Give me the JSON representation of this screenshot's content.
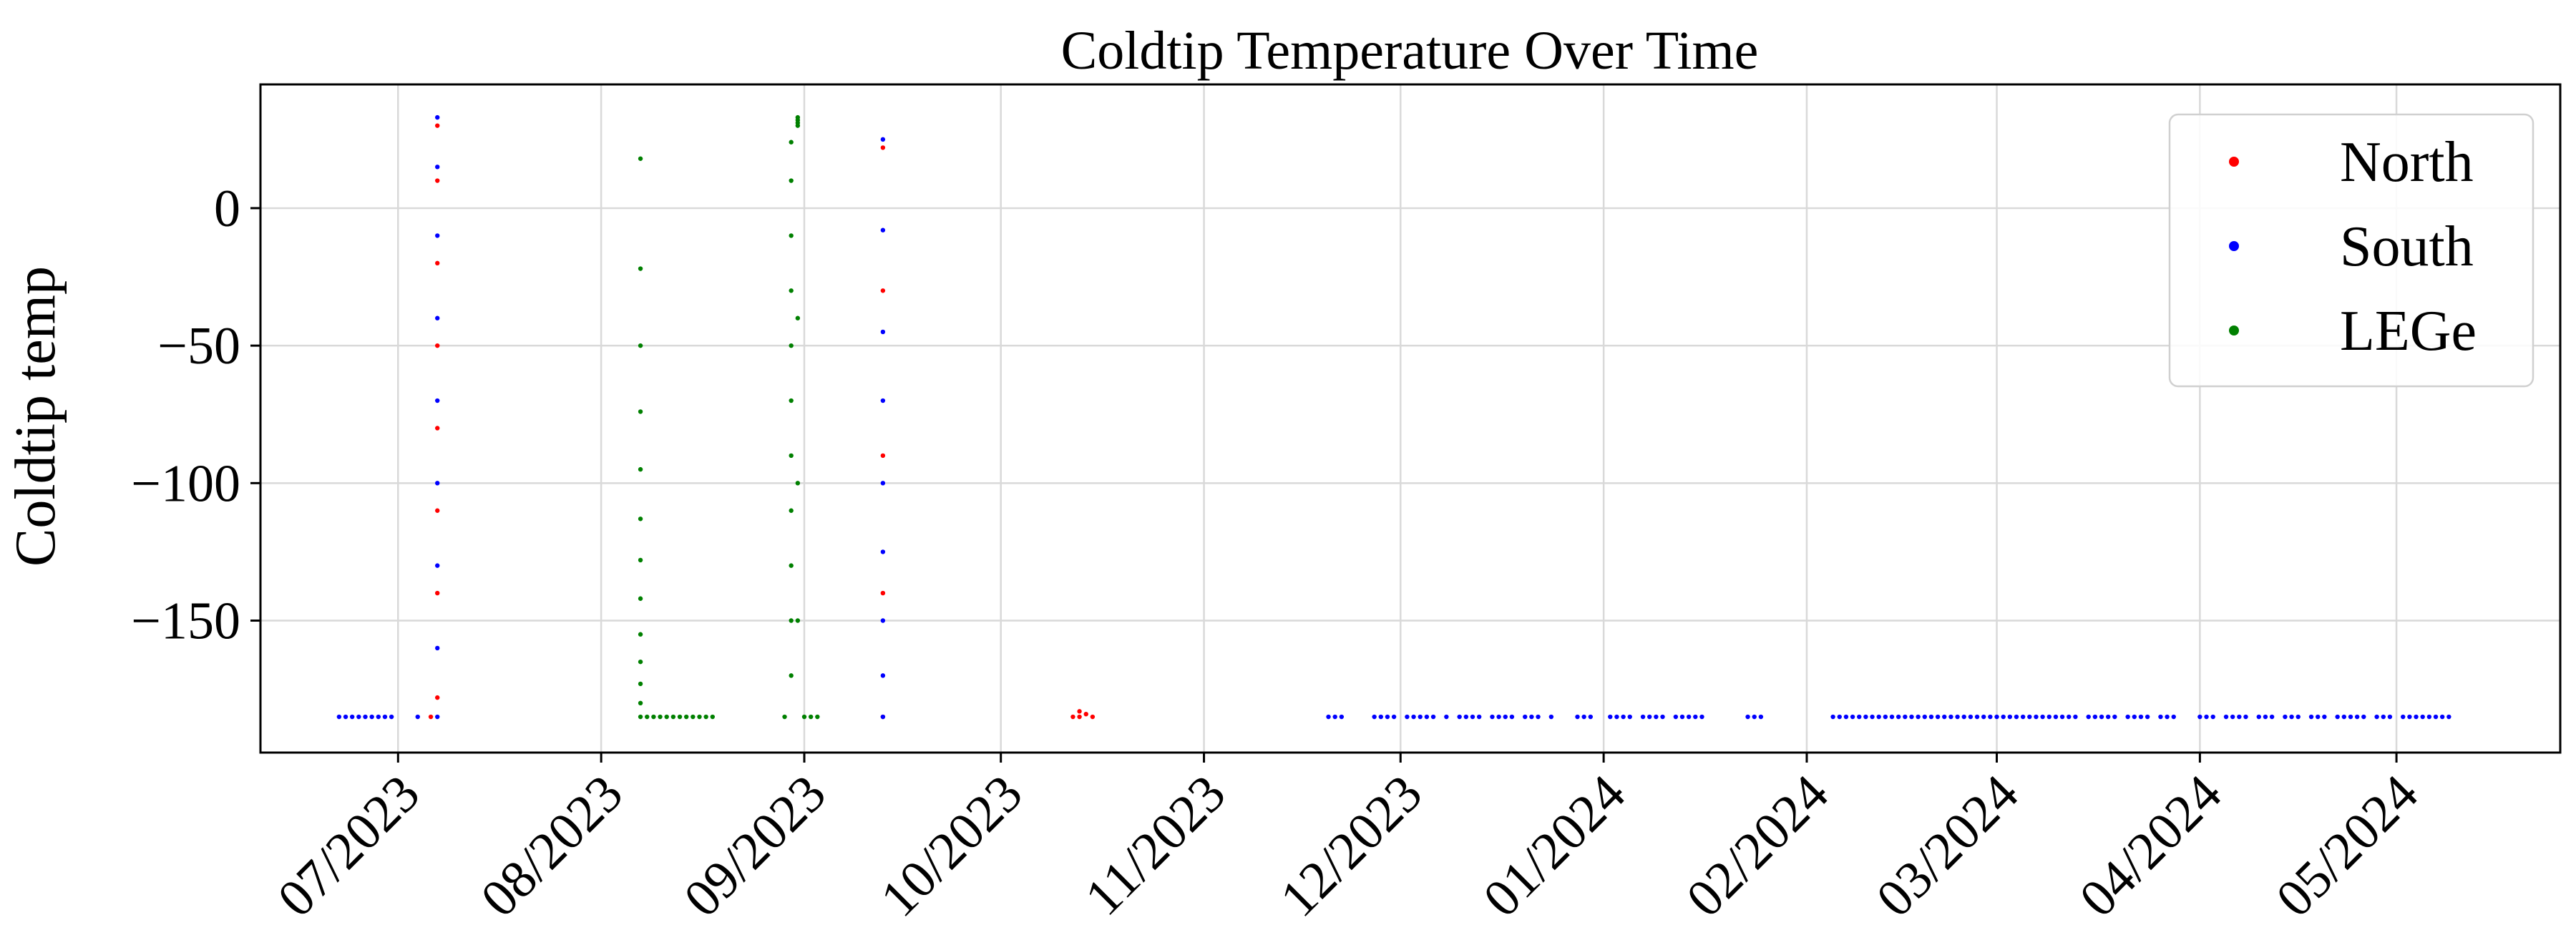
{
  "chart_data": {
    "type": "scatter",
    "title": "Coldtip Temperature Over Time",
    "xlabel": "",
    "ylabel": "Coldtip temp",
    "xlim": [
      "2023-06-10",
      "2024-05-26"
    ],
    "ylim": [
      -198,
      45
    ],
    "x_ticks": [
      {
        "date": "2023-07-01",
        "label": "07/2023"
      },
      {
        "date": "2023-08-01",
        "label": "08/2023"
      },
      {
        "date": "2023-09-01",
        "label": "09/2023"
      },
      {
        "date": "2023-10-01",
        "label": "10/2023"
      },
      {
        "date": "2023-11-01",
        "label": "11/2023"
      },
      {
        "date": "2023-12-01",
        "label": "12/2023"
      },
      {
        "date": "2024-01-01",
        "label": "01/2024"
      },
      {
        "date": "2024-02-01",
        "label": "02/2024"
      },
      {
        "date": "2024-03-01",
        "label": "03/2024"
      },
      {
        "date": "2024-04-01",
        "label": "04/2024"
      },
      {
        "date": "2024-05-01",
        "label": "05/2024"
      }
    ],
    "y_ticks": [
      0,
      -50,
      -100,
      -150
    ],
    "y_tick_labels": [
      "0",
      "−50",
      "−100",
      "−150"
    ],
    "grid": true,
    "legend": {
      "placement": "top-right",
      "entries": [
        "North",
        "South",
        "LEGe"
      ]
    },
    "series": [
      {
        "name": "North",
        "color": "#ff0000",
        "points": [
          [
            "2023-07-06",
            -185
          ],
          [
            "2023-07-07",
            -178
          ],
          [
            "2023-07-07",
            -140
          ],
          [
            "2023-07-07",
            -110
          ],
          [
            "2023-07-07",
            -80
          ],
          [
            "2023-07-07",
            -50
          ],
          [
            "2023-07-07",
            -20
          ],
          [
            "2023-07-07",
            10
          ],
          [
            "2023-07-07",
            30
          ],
          [
            "2023-09-13",
            -185
          ],
          [
            "2023-09-13",
            -140
          ],
          [
            "2023-09-13",
            -90
          ],
          [
            "2023-09-13",
            -30
          ],
          [
            "2023-09-13",
            22
          ],
          [
            "2023-10-12",
            -185
          ],
          [
            "2023-10-13",
            -183
          ],
          [
            "2023-10-13",
            -185
          ],
          [
            "2023-10-14",
            -184
          ],
          [
            "2023-10-15",
            -185
          ]
        ]
      },
      {
        "name": "South",
        "color": "#0000ff",
        "points": [
          [
            "2023-06-22",
            -185
          ],
          [
            "2023-06-23",
            -185
          ],
          [
            "2023-06-24",
            -185
          ],
          [
            "2023-06-25",
            -185
          ],
          [
            "2023-06-26",
            -185
          ],
          [
            "2023-06-27",
            -185
          ],
          [
            "2023-06-28",
            -185
          ],
          [
            "2023-06-29",
            -185
          ],
          [
            "2023-06-30",
            -185
          ],
          [
            "2023-07-04",
            -185
          ],
          [
            "2023-07-07",
            -185
          ],
          [
            "2023-07-07",
            -160
          ],
          [
            "2023-07-07",
            -130
          ],
          [
            "2023-07-07",
            -100
          ],
          [
            "2023-07-07",
            -70
          ],
          [
            "2023-07-07",
            -40
          ],
          [
            "2023-07-07",
            -10
          ],
          [
            "2023-07-07",
            15
          ],
          [
            "2023-07-07",
            33
          ],
          [
            "2023-09-13",
            -185
          ],
          [
            "2023-09-13",
            -170
          ],
          [
            "2023-09-13",
            -150
          ],
          [
            "2023-09-13",
            -125
          ],
          [
            "2023-09-13",
            -100
          ],
          [
            "2023-09-13",
            -70
          ],
          [
            "2023-09-13",
            -45
          ],
          [
            "2023-09-13",
            -8
          ],
          [
            "2023-09-13",
            25
          ],
          [
            "2023-11-20",
            -185
          ],
          [
            "2023-11-21",
            -185
          ],
          [
            "2023-11-22",
            -185
          ],
          [
            "2023-11-27",
            -185
          ],
          [
            "2023-11-28",
            -185
          ],
          [
            "2023-11-29",
            -185
          ],
          [
            "2023-11-30",
            -185
          ],
          [
            "2023-12-02",
            -185
          ],
          [
            "2023-12-03",
            -185
          ],
          [
            "2023-12-04",
            -185
          ],
          [
            "2023-12-05",
            -185
          ],
          [
            "2023-12-06",
            -185
          ],
          [
            "2023-12-08",
            -185
          ],
          [
            "2023-12-10",
            -185
          ],
          [
            "2023-12-11",
            -185
          ],
          [
            "2023-12-12",
            -185
          ],
          [
            "2023-12-13",
            -185
          ],
          [
            "2023-12-15",
            -185
          ],
          [
            "2023-12-16",
            -185
          ],
          [
            "2023-12-17",
            -185
          ],
          [
            "2023-12-18",
            -185
          ],
          [
            "2023-12-20",
            -185
          ],
          [
            "2023-12-21",
            -185
          ],
          [
            "2023-12-22",
            -185
          ],
          [
            "2023-12-24",
            -185
          ],
          [
            "2023-12-28",
            -185
          ],
          [
            "2023-12-29",
            -185
          ],
          [
            "2023-12-30",
            -185
          ],
          [
            "2024-01-02",
            -185
          ],
          [
            "2024-01-03",
            -185
          ],
          [
            "2024-01-04",
            -185
          ],
          [
            "2024-01-05",
            -185
          ],
          [
            "2024-01-07",
            -185
          ],
          [
            "2024-01-08",
            -185
          ],
          [
            "2024-01-09",
            -185
          ],
          [
            "2024-01-10",
            -185
          ],
          [
            "2024-01-12",
            -185
          ],
          [
            "2024-01-13",
            -185
          ],
          [
            "2024-01-14",
            -185
          ],
          [
            "2024-01-15",
            -185
          ],
          [
            "2024-01-16",
            -185
          ],
          [
            "2024-01-23",
            -185
          ],
          [
            "2024-01-24",
            -185
          ],
          [
            "2024-01-25",
            -185
          ],
          [
            "2024-02-05",
            -185
          ],
          [
            "2024-02-06",
            -185
          ],
          [
            "2024-02-07",
            -185
          ],
          [
            "2024-02-08",
            -185
          ],
          [
            "2024-02-09",
            -185
          ],
          [
            "2024-02-10",
            -185
          ],
          [
            "2024-02-11",
            -185
          ],
          [
            "2024-02-12",
            -185
          ],
          [
            "2024-02-13",
            -185
          ],
          [
            "2024-02-14",
            -185
          ],
          [
            "2024-02-15",
            -185
          ],
          [
            "2024-02-16",
            -185
          ],
          [
            "2024-02-17",
            -185
          ],
          [
            "2024-02-18",
            -185
          ],
          [
            "2024-02-19",
            -185
          ],
          [
            "2024-02-20",
            -185
          ],
          [
            "2024-02-21",
            -185
          ],
          [
            "2024-02-22",
            -185
          ],
          [
            "2024-02-23",
            -185
          ],
          [
            "2024-02-24",
            -185
          ],
          [
            "2024-02-25",
            -185
          ],
          [
            "2024-02-26",
            -185
          ],
          [
            "2024-02-27",
            -185
          ],
          [
            "2024-02-28",
            -185
          ],
          [
            "2024-02-29",
            -185
          ],
          [
            "2024-03-01",
            -185
          ],
          [
            "2024-03-02",
            -185
          ],
          [
            "2024-03-03",
            -185
          ],
          [
            "2024-03-04",
            -185
          ],
          [
            "2024-03-05",
            -185
          ],
          [
            "2024-03-06",
            -185
          ],
          [
            "2024-03-07",
            -185
          ],
          [
            "2024-03-08",
            -185
          ],
          [
            "2024-03-09",
            -185
          ],
          [
            "2024-03-10",
            -185
          ],
          [
            "2024-03-11",
            -185
          ],
          [
            "2024-03-12",
            -185
          ],
          [
            "2024-03-13",
            -185
          ],
          [
            "2024-03-15",
            -185
          ],
          [
            "2024-03-16",
            -185
          ],
          [
            "2024-03-17",
            -185
          ],
          [
            "2024-03-18",
            -185
          ],
          [
            "2024-03-19",
            -185
          ],
          [
            "2024-03-21",
            -185
          ],
          [
            "2024-03-22",
            -185
          ],
          [
            "2024-03-23",
            -185
          ],
          [
            "2024-03-24",
            -185
          ],
          [
            "2024-03-26",
            -185
          ],
          [
            "2024-03-27",
            -185
          ],
          [
            "2024-03-28",
            -185
          ],
          [
            "2024-04-01",
            -185
          ],
          [
            "2024-04-02",
            -185
          ],
          [
            "2024-04-03",
            -185
          ],
          [
            "2024-04-05",
            -185
          ],
          [
            "2024-04-06",
            -185
          ],
          [
            "2024-04-07",
            -185
          ],
          [
            "2024-04-08",
            -185
          ],
          [
            "2024-04-10",
            -185
          ],
          [
            "2024-04-11",
            -185
          ],
          [
            "2024-04-12",
            -185
          ],
          [
            "2024-04-14",
            -185
          ],
          [
            "2024-04-15",
            -185
          ],
          [
            "2024-04-16",
            -185
          ],
          [
            "2024-04-18",
            -185
          ],
          [
            "2024-04-19",
            -185
          ],
          [
            "2024-04-20",
            -185
          ],
          [
            "2024-04-22",
            -185
          ],
          [
            "2024-04-23",
            -185
          ],
          [
            "2024-04-24",
            -185
          ],
          [
            "2024-04-25",
            -185
          ],
          [
            "2024-04-26",
            -185
          ],
          [
            "2024-04-28",
            -185
          ],
          [
            "2024-04-29",
            -185
          ],
          [
            "2024-04-30",
            -185
          ],
          [
            "2024-05-02",
            -185
          ],
          [
            "2024-05-03",
            -185
          ],
          [
            "2024-05-04",
            -185
          ],
          [
            "2024-05-05",
            -185
          ],
          [
            "2024-05-06",
            -185
          ],
          [
            "2024-05-07",
            -185
          ],
          [
            "2024-05-08",
            -185
          ],
          [
            "2024-05-09",
            -185
          ]
        ]
      },
      {
        "name": "LEGe",
        "color": "#008000",
        "points": [
          [
            "2023-08-07",
            18
          ],
          [
            "2023-08-07",
            -22
          ],
          [
            "2023-08-07",
            -50
          ],
          [
            "2023-08-07",
            -74
          ],
          [
            "2023-08-07",
            -95
          ],
          [
            "2023-08-07",
            -113
          ],
          [
            "2023-08-07",
            -128
          ],
          [
            "2023-08-07",
            -142
          ],
          [
            "2023-08-07",
            -155
          ],
          [
            "2023-08-07",
            -165
          ],
          [
            "2023-08-07",
            -173
          ],
          [
            "2023-08-07",
            -180
          ],
          [
            "2023-08-07",
            -185
          ],
          [
            "2023-08-08",
            -185
          ],
          [
            "2023-08-09",
            -185
          ],
          [
            "2023-08-10",
            -185
          ],
          [
            "2023-08-11",
            -185
          ],
          [
            "2023-08-12",
            -185
          ],
          [
            "2023-08-13",
            -185
          ],
          [
            "2023-08-14",
            -185
          ],
          [
            "2023-08-15",
            -185
          ],
          [
            "2023-08-16",
            -185
          ],
          [
            "2023-08-17",
            -185
          ],
          [
            "2023-08-18",
            -185
          ],
          [
            "2023-08-29",
            -185
          ],
          [
            "2023-08-30",
            -170
          ],
          [
            "2023-08-30",
            -150
          ],
          [
            "2023-08-30",
            -130
          ],
          [
            "2023-08-30",
            -110
          ],
          [
            "2023-08-30",
            -90
          ],
          [
            "2023-08-30",
            -70
          ],
          [
            "2023-08-30",
            -50
          ],
          [
            "2023-08-30",
            -30
          ],
          [
            "2023-08-30",
            -10
          ],
          [
            "2023-08-30",
            10
          ],
          [
            "2023-08-30",
            24
          ],
          [
            "2023-08-31",
            30
          ],
          [
            "2023-08-31",
            33
          ],
          [
            "2023-08-31",
            32
          ],
          [
            "2023-08-31",
            31
          ],
          [
            "2023-08-31",
            -40
          ],
          [
            "2023-08-31",
            -100
          ],
          [
            "2023-08-31",
            -150
          ],
          [
            "2023-09-01",
            -185
          ],
          [
            "2023-09-02",
            -185
          ],
          [
            "2023-09-03",
            -185
          ]
        ]
      }
    ]
  }
}
